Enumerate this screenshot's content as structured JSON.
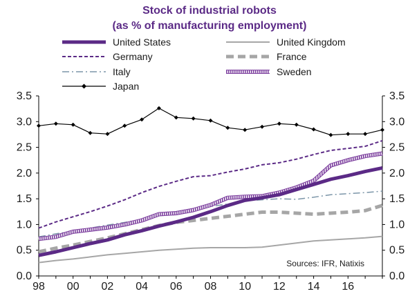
{
  "chart_data": {
    "type": "line",
    "title_line1": "Stock of industrial robots",
    "title_line2": "(as % of manufacturing employment)",
    "title_color": "#5b2a86",
    "source": "Sources: IFR, Natixis",
    "x": [
      1998,
      1999,
      2000,
      2001,
      2002,
      2003,
      2004,
      2005,
      2006,
      2007,
      2008,
      2009,
      2010,
      2011,
      2012,
      2013,
      2014,
      2015,
      2016,
      2017,
      2018
    ],
    "x_ticks": [
      {
        "year": 1998,
        "label": "98"
      },
      {
        "year": 2000,
        "label": "00"
      },
      {
        "year": 2002,
        "label": "02"
      },
      {
        "year": 2004,
        "label": "04"
      },
      {
        "year": 2006,
        "label": "06"
      },
      {
        "year": 2008,
        "label": "08"
      },
      {
        "year": 2010,
        "label": "10"
      },
      {
        "year": 2012,
        "label": "12"
      },
      {
        "year": 2014,
        "label": "14"
      },
      {
        "year": 2016,
        "label": "16"
      }
    ],
    "y_ticks": [
      "0.0",
      "0.5",
      "1.0",
      "1.5",
      "2.0",
      "2.5",
      "3.0",
      "3.5"
    ],
    "xlim": [
      1998,
      2018
    ],
    "ylim": [
      0,
      3.5
    ],
    "grid": false,
    "series": [
      {
        "name": "United States",
        "color": "#5b2a86",
        "style": "thick-solid",
        "values": [
          0.4,
          0.47,
          0.55,
          0.63,
          0.7,
          0.8,
          0.88,
          0.97,
          1.05,
          1.14,
          1.25,
          1.37,
          1.47,
          1.52,
          1.58,
          1.68,
          1.78,
          1.88,
          1.95,
          2.03,
          2.1
        ]
      },
      {
        "name": "United Kingdom",
        "color": "#a6a6a6",
        "style": "thin-solid",
        "values": [
          0.26,
          0.3,
          0.33,
          0.37,
          0.41,
          0.44,
          0.47,
          0.5,
          0.52,
          0.54,
          0.55,
          0.55,
          0.55,
          0.56,
          0.6,
          0.64,
          0.68,
          0.7,
          0.72,
          0.74,
          0.77
        ]
      },
      {
        "name": "Germany",
        "color": "#5b2a86",
        "style": "dashed",
        "values": [
          0.93,
          1.05,
          1.15,
          1.25,
          1.36,
          1.48,
          1.62,
          1.74,
          1.84,
          1.93,
          1.95,
          2.02,
          2.08,
          2.16,
          2.2,
          2.27,
          2.36,
          2.44,
          2.48,
          2.52,
          2.63
        ]
      },
      {
        "name": "France",
        "color": "#a6a6a6",
        "style": "thick-dashed",
        "values": [
          0.47,
          0.54,
          0.6,
          0.67,
          0.74,
          0.82,
          0.9,
          0.98,
          1.04,
          1.08,
          1.12,
          1.16,
          1.2,
          1.24,
          1.24,
          1.22,
          1.2,
          1.22,
          1.24,
          1.27,
          1.37
        ]
      },
      {
        "name": "Italy",
        "color": "#7b95a8",
        "style": "dash-dot",
        "values": [
          0.76,
          0.82,
          0.87,
          0.93,
          0.99,
          1.04,
          1.1,
          1.19,
          1.25,
          1.29,
          1.35,
          1.4,
          1.46,
          1.48,
          1.5,
          1.49,
          1.53,
          1.58,
          1.6,
          1.62,
          1.65
        ]
      },
      {
        "name": "Sweden",
        "color": "#7c3f9e",
        "style": "hatched",
        "values": [
          0.72,
          0.76,
          0.86,
          0.9,
          0.94,
          1.0,
          1.08,
          1.2,
          1.22,
          1.28,
          1.38,
          1.52,
          1.54,
          1.55,
          1.62,
          1.72,
          1.85,
          2.15,
          2.25,
          2.33,
          2.38
        ]
      },
      {
        "name": "Japan",
        "color": "#000000",
        "style": "solid-diamond",
        "values": [
          2.92,
          2.96,
          2.94,
          2.78,
          2.76,
          2.92,
          3.04,
          3.26,
          3.08,
          3.06,
          3.02,
          2.88,
          2.84,
          2.9,
          2.96,
          2.94,
          2.85,
          2.74,
          2.76,
          2.76,
          2.84
        ]
      }
    ]
  }
}
